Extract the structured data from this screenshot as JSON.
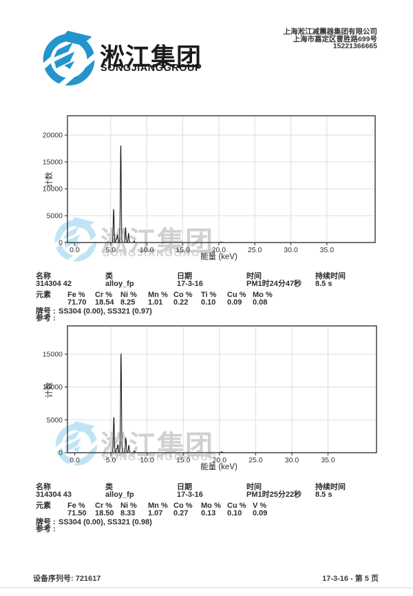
{
  "header": {
    "brand_cn": "淞江集团",
    "brand_en": "SONGJIANGGROUP",
    "company_lines": [
      "上海淞江减震器集团有限公司",
      "上海市嘉定区曹胜路699号",
      "15221366665"
    ]
  },
  "watermark": {
    "text_cn": "淞江集团",
    "text_en": "SONGJIANGGROUP"
  },
  "chart_data": [
    {
      "type": "area",
      "title": "",
      "xlabel": "能量 (keV)",
      "ylabel": "计数",
      "xlim": [
        -1,
        41.7
      ],
      "ylim": [
        0,
        23600
      ],
      "xticks": [
        0,
        5,
        10,
        15,
        20,
        25,
        30,
        35
      ],
      "yticks": [
        0,
        5000,
        10000,
        15000,
        20000
      ],
      "grid": true,
      "legend": "none",
      "peaks": [
        {
          "kev": 4.55,
          "counts": 120
        },
        {
          "kev": 5.41,
          "counts": 6300
        },
        {
          "kev": 5.78,
          "counts": 700
        },
        {
          "kev": 5.95,
          "counts": 1400
        },
        {
          "kev": 6.4,
          "counts": 18300
        },
        {
          "kev": 7.06,
          "counts": 2850
        },
        {
          "kev": 7.48,
          "counts": 1700
        },
        {
          "kev": 8.26,
          "counts": 300
        },
        {
          "kev": 20.3,
          "counts": 100,
          "sigma": 0.15
        }
      ]
    },
    {
      "type": "area",
      "title": "",
      "xlabel": "能量 (keV)",
      "ylabel": "计数",
      "xlim": [
        -1,
        41.7
      ],
      "ylim": [
        0,
        19300
      ],
      "xticks": [
        0,
        5,
        10,
        15,
        20,
        25,
        30,
        35
      ],
      "yticks": [
        0,
        5000,
        10000,
        15000
      ],
      "grid": true,
      "legend": "none",
      "peaks": [
        {
          "kev": 5.41,
          "counts": 5500
        },
        {
          "kev": 5.78,
          "counts": 600
        },
        {
          "kev": 5.95,
          "counts": 1200
        },
        {
          "kev": 6.4,
          "counts": 15300
        },
        {
          "kev": 7.06,
          "counts": 2300
        },
        {
          "kev": 7.48,
          "counts": 1100
        },
        {
          "kev": 8.26,
          "counts": 250
        },
        {
          "kev": 20.3,
          "counts": 120,
          "sigma": 0.15
        }
      ]
    }
  ],
  "results": [
    {
      "fields": [
        {
          "label": "名称",
          "value": "314304 42"
        },
        {
          "label": "类",
          "value": "alloy_fp"
        },
        {
          "label": "日期",
          "value": "17-3-16"
        },
        {
          "label": "时间",
          "value": "PM1时24分47秒"
        },
        {
          "label": "持续时间",
          "value": "8.5 s"
        }
      ],
      "elements_label": "元素",
      "elements": [
        {
          "symbol": "Fe %",
          "value": "71.70"
        },
        {
          "symbol": "Cr %",
          "value": "18.54"
        },
        {
          "symbol": "Ni %",
          "value": "8.25"
        },
        {
          "symbol": "Mn %",
          "value": "1.01"
        },
        {
          "symbol": "Co %",
          "value": "0.22"
        },
        {
          "symbol": "Ti %",
          "value": "0.10"
        },
        {
          "symbol": "Cu %",
          "value": "0.09"
        },
        {
          "symbol": "Mo %",
          "value": "0.08"
        }
      ],
      "grade_label": "牌号 :",
      "grade": "SS304 (0.00), SS321 (0.97)",
      "reference_label": "参考 :",
      "reference": ""
    },
    {
      "fields": [
        {
          "label": "名称",
          "value": "314304 43"
        },
        {
          "label": "类",
          "value": "alloy_fp"
        },
        {
          "label": "日期",
          "value": "17-3-16"
        },
        {
          "label": "时间",
          "value": "PM1时25分22秒"
        },
        {
          "label": "持续时间",
          "value": "8.5 s"
        }
      ],
      "elements_label": "元素",
      "elements": [
        {
          "symbol": "Fe %",
          "value": "71.50"
        },
        {
          "symbol": "Cr %",
          "value": "18.50"
        },
        {
          "symbol": "Ni %",
          "value": "8.33"
        },
        {
          "symbol": "Mn %",
          "value": "1.07"
        },
        {
          "symbol": "Co %",
          "value": "0.27"
        },
        {
          "symbol": "Mo %",
          "value": "0.13"
        },
        {
          "symbol": "Cu %",
          "value": "0.10"
        },
        {
          "symbol": "V %",
          "value": "0.09"
        }
      ],
      "grade_label": "牌号 :",
      "grade": "SS304 (0.00), SS321 (0.98)",
      "reference_label": "参考 :",
      "reference": ""
    }
  ],
  "footer": {
    "serial": "设备序列号: 721617",
    "page": "17-3-16 - 第 5 页"
  },
  "colors": {
    "logo_blue": "#2395cc",
    "watermark_blue": "#a6daf3",
    "grid": "#dcdcdc",
    "plot_border": "#4d4d4d",
    "spectrum": "#1b1b1b"
  }
}
